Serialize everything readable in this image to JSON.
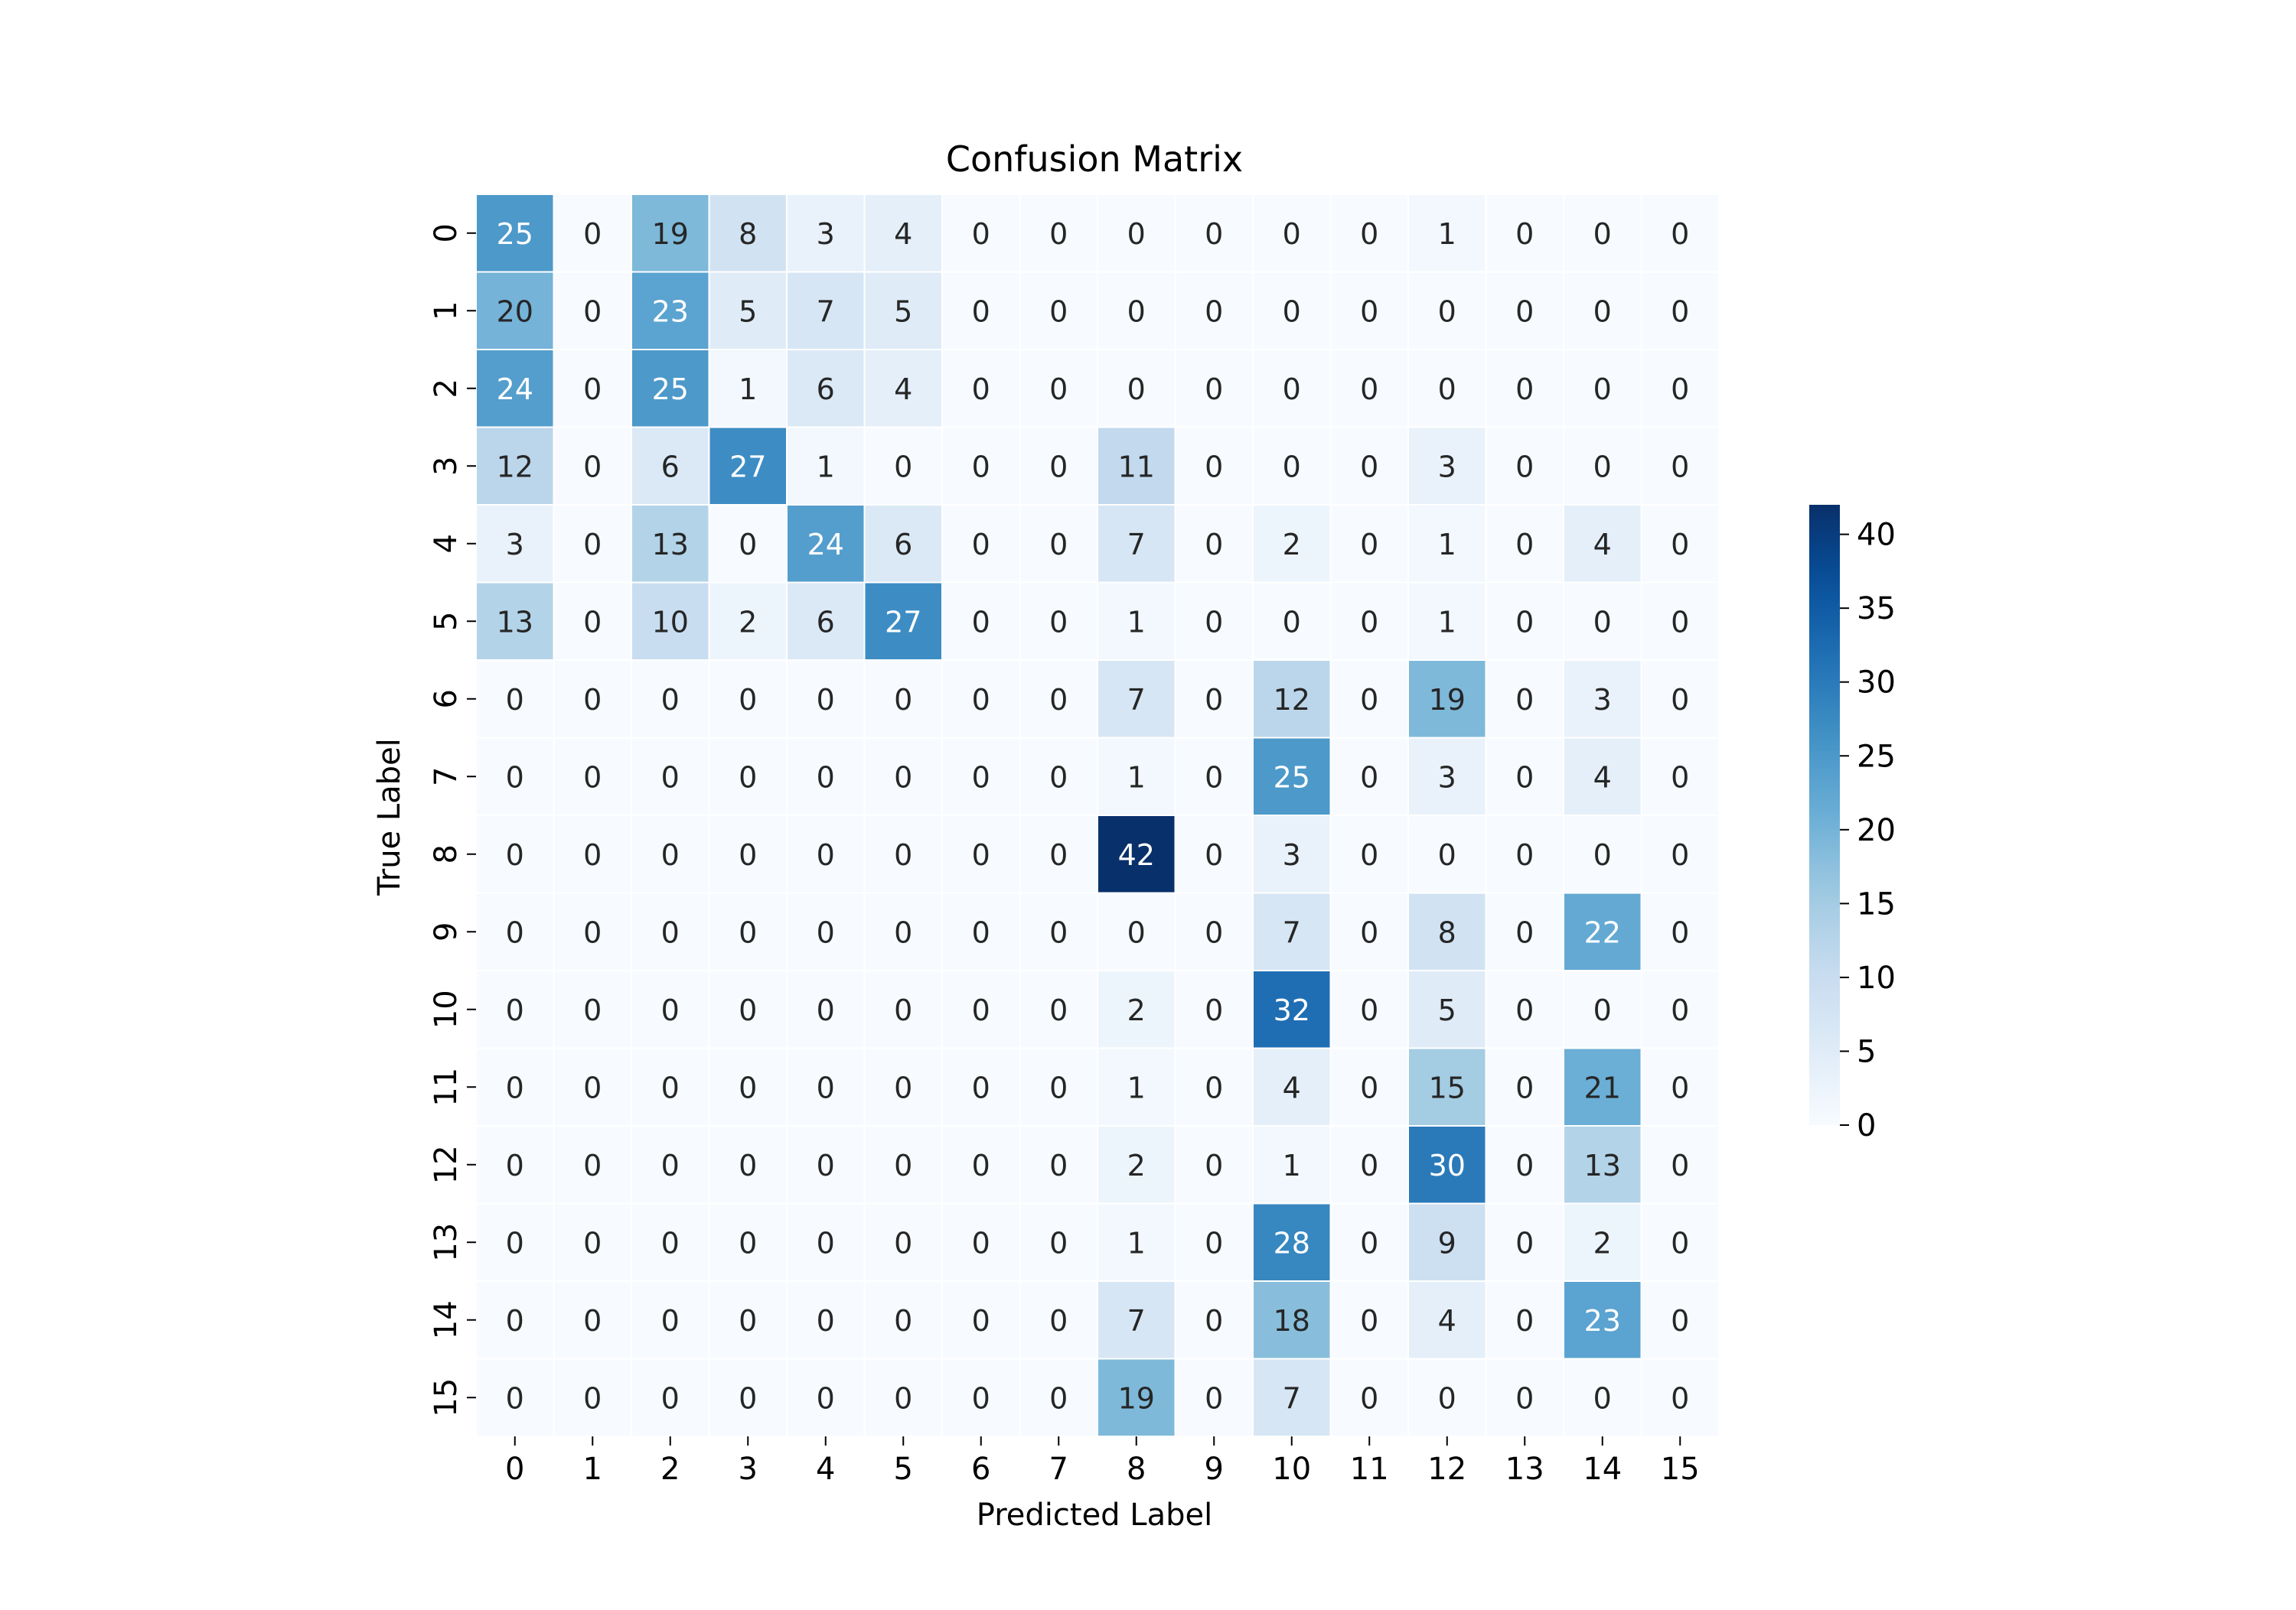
{
  "chart_data": {
    "type": "heatmap",
    "title": "Confusion Matrix",
    "xlabel": "Predicted Label",
    "ylabel": "True Label",
    "x_categories": [
      "0",
      "1",
      "2",
      "3",
      "4",
      "5",
      "6",
      "7",
      "8",
      "9",
      "10",
      "11",
      "12",
      "13",
      "14",
      "15"
    ],
    "y_categories": [
      "0",
      "1",
      "2",
      "3",
      "4",
      "5",
      "6",
      "7",
      "8",
      "9",
      "10",
      "11",
      "12",
      "13",
      "14",
      "15"
    ],
    "values": [
      [
        25,
        0,
        19,
        8,
        3,
        4,
        0,
        0,
        0,
        0,
        0,
        0,
        1,
        0,
        0,
        0
      ],
      [
        20,
        0,
        23,
        5,
        7,
        5,
        0,
        0,
        0,
        0,
        0,
        0,
        0,
        0,
        0,
        0
      ],
      [
        24,
        0,
        25,
        1,
        6,
        4,
        0,
        0,
        0,
        0,
        0,
        0,
        0,
        0,
        0,
        0
      ],
      [
        12,
        0,
        6,
        27,
        1,
        0,
        0,
        0,
        11,
        0,
        0,
        0,
        3,
        0,
        0,
        0
      ],
      [
        3,
        0,
        13,
        0,
        24,
        6,
        0,
        0,
        7,
        0,
        2,
        0,
        1,
        0,
        4,
        0
      ],
      [
        13,
        0,
        10,
        2,
        6,
        27,
        0,
        0,
        1,
        0,
        0,
        0,
        1,
        0,
        0,
        0
      ],
      [
        0,
        0,
        0,
        0,
        0,
        0,
        0,
        0,
        7,
        0,
        12,
        0,
        19,
        0,
        3,
        0
      ],
      [
        0,
        0,
        0,
        0,
        0,
        0,
        0,
        0,
        1,
        0,
        25,
        0,
        3,
        0,
        4,
        0
      ],
      [
        0,
        0,
        0,
        0,
        0,
        0,
        0,
        0,
        42,
        0,
        3,
        0,
        0,
        0,
        0,
        0
      ],
      [
        0,
        0,
        0,
        0,
        0,
        0,
        0,
        0,
        0,
        0,
        7,
        0,
        8,
        0,
        22,
        0
      ],
      [
        0,
        0,
        0,
        0,
        0,
        0,
        0,
        0,
        2,
        0,
        32,
        0,
        5,
        0,
        0,
        0
      ],
      [
        0,
        0,
        0,
        0,
        0,
        0,
        0,
        0,
        1,
        0,
        4,
        0,
        15,
        0,
        21,
        0
      ],
      [
        0,
        0,
        0,
        0,
        0,
        0,
        0,
        0,
        2,
        0,
        1,
        0,
        30,
        0,
        13,
        0
      ],
      [
        0,
        0,
        0,
        0,
        0,
        0,
        0,
        0,
        1,
        0,
        28,
        0,
        9,
        0,
        2,
        0
      ],
      [
        0,
        0,
        0,
        0,
        0,
        0,
        0,
        0,
        7,
        0,
        18,
        0,
        4,
        0,
        23,
        0
      ],
      [
        0,
        0,
        0,
        0,
        0,
        0,
        0,
        0,
        19,
        0,
        7,
        0,
        0,
        0,
        0,
        0
      ]
    ],
    "colormap": "Blues",
    "colorbar": {
      "range": [
        0,
        42
      ],
      "ticks": [
        0,
        5,
        10,
        15,
        20,
        25,
        30,
        35,
        40
      ]
    },
    "annotations": true,
    "legend": "none",
    "grid": false
  }
}
